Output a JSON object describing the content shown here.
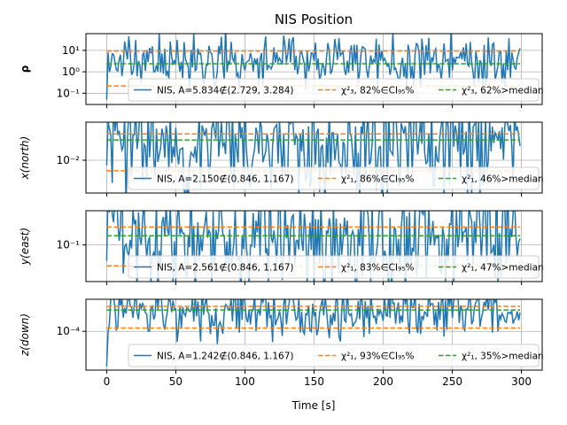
{
  "figure": {
    "title": "NIS Position",
    "xlabel": "Time [s]",
    "xticks": [
      0,
      50,
      100,
      150,
      200,
      250,
      300
    ],
    "xlim": [
      -15,
      315
    ]
  },
  "chart_data": [
    {
      "type": "line",
      "ylabel": "ρ",
      "ylabel_bold": true,
      "yscale": "log",
      "ylim": [
        0.03,
        60
      ],
      "yticks": [
        {
          "value": 0.1,
          "label": "10⁻¹"
        },
        {
          "value": 1,
          "label": "10⁰"
        },
        {
          "value": 10,
          "label": "10¹"
        }
      ],
      "grid": true,
      "nis": {
        "base": 3.0,
        "spread": 0.55,
        "start": 0.05,
        "seed": 11,
        "spikes": [
          [
            135,
            40
          ],
          [
            228,
            35
          ],
          [
            160,
            22
          ],
          [
            90,
            25
          ],
          [
            56,
            24
          ]
        ]
      },
      "cl_low": 0.22,
      "cl_high": 9.35,
      "median": 2.37,
      "legend": {
        "position": "lower-right",
        "nis_label": "NIS, A=5.834∉(2.729, 3.284)",
        "cl_label": "χ²₃, 82%∈CI₉₅%",
        "median_label": "χ²₃, 62%>median"
      }
    },
    {
      "type": "line",
      "ylabel": "x(north)",
      "yscale": "log",
      "ylim": [
        0.0025,
        0.05
      ],
      "yticks": [
        {
          "value": 0.01,
          "label": "10⁻²"
        }
      ],
      "grid": true,
      "nis": {
        "base": 0.02,
        "spread": 0.45,
        "start": 0.008,
        "seed": 23,
        "spikes": [
          [
            181,
            0.003
          ],
          [
            195,
            0.0028
          ]
        ]
      },
      "cl_low": 0.0064,
      "cl_high": 0.0305,
      "median": 0.0235,
      "legend": {
        "position": "lower-right",
        "nis_label": "NIS, A=2.150∉(0.846, 1.167)",
        "cl_label": "χ²₁, 86%∈CI₉₅%",
        "median_label": "χ²₁, 46%>median"
      }
    },
    {
      "type": "line",
      "ylabel": "y(east)",
      "yscale": "log",
      "ylim": [
        0.02,
        0.45
      ],
      "yticks": [
        {
          "value": 0.1,
          "label": "10⁻¹"
        }
      ],
      "grid": true,
      "nis": {
        "base": 0.14,
        "spread": 0.5,
        "start": 0.05,
        "seed": 37,
        "spikes": [
          [
            185,
            0.025
          ],
          [
            193,
            0.03
          ]
        ]
      },
      "cl_low": 0.04,
      "cl_high": 0.22,
      "median": 0.15,
      "legend": {
        "position": "lower-right",
        "nis_label": "NIS, A=2.561∉(0.846, 1.167)",
        "cl_label": "χ²₁, 83%∈CI₉₅%",
        "median_label": "χ²₁, 47%>median"
      }
    },
    {
      "type": "line",
      "ylabel": "z(down)",
      "yscale": "log",
      "ylim": [
        4.5e-06,
        0.0013
      ],
      "yticks": [
        {
          "value": 0.0001,
          "label": "10⁻⁴"
        }
      ],
      "grid": true,
      "nis": {
        "base": 0.00045,
        "spread": 0.4,
        "start": 6e-06,
        "seed": 51,
        "spikes": [
          [
            75,
            8e-05
          ],
          [
            96,
            9e-05
          ]
        ]
      },
      "cl_low": 0.00013,
      "cl_high": 0.00074,
      "median": 0.00055,
      "legend": {
        "position": "lower-right",
        "nis_label": "NIS, A=1.242∉(0.846, 1.167)",
        "cl_label": "χ²₁, 93%∈CI₉₅%",
        "median_label": "χ²₁, 35%>median"
      }
    }
  ],
  "colors": {
    "nis": "#1f77b4",
    "cl": "#ff7f0e",
    "median": "#2ca02c",
    "grid": "#b0b0b0",
    "axes": "#000000"
  }
}
